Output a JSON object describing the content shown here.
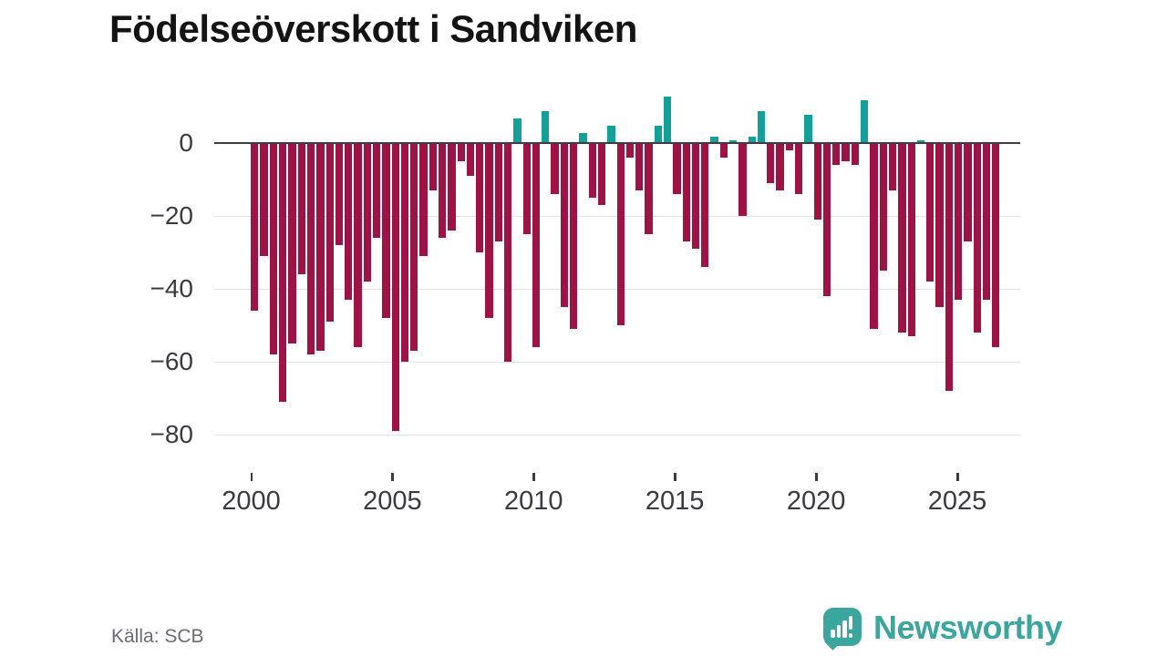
{
  "title": "Födelseöverskott i Sandviken",
  "source": {
    "label": "Källa: SCB"
  },
  "branding": {
    "name": "Newsworthy",
    "icon": "newsworthy-chart-bubble-icon"
  },
  "colors": {
    "negative_bar": "#a01144",
    "positive_bar": "#12a19a",
    "zero_line": "#3d3d42",
    "gridline": "#e3e3e6",
    "axis_text": "#3a3a40",
    "title_text": "#141414",
    "source_text": "#6b6b73",
    "brand_teal": "#3aa79f",
    "background": "#ffffff"
  },
  "chart_data": {
    "type": "bar",
    "title": "Födelseöverskott i Sandviken",
    "start_year": 2000,
    "periods_per_year": 3,
    "values": [
      -46,
      -31,
      -58,
      -71,
      -55,
      -36,
      -58,
      -57,
      -49,
      -28,
      -43,
      -56,
      -38,
      -26,
      -48,
      -79,
      -60,
      -57,
      -31,
      -13,
      -26,
      -24,
      -5,
      -9,
      -30,
      -48,
      -27,
      -60,
      7,
      -25,
      -56,
      9,
      -14,
      -45,
      -51,
      3,
      -15,
      -17,
      5,
      -50,
      -4,
      -13,
      -25,
      5,
      13,
      -14,
      -27,
      -29,
      -34,
      2,
      -4,
      1,
      -20,
      2,
      9,
      -11,
      -13,
      -2,
      -14,
      8,
      -21,
      -42,
      -6,
      -5,
      -6,
      12,
      -51,
      -35,
      -13,
      -52,
      -53,
      1,
      -38,
      -45,
      -68,
      -43,
      -27,
      -52,
      -43,
      -56
    ],
    "x_tick_labels": [
      "2000",
      "2005",
      "2010",
      "2015",
      "2020",
      "2025"
    ],
    "y_tick_labels": [
      "0",
      "−20",
      "−40",
      "−60",
      "−80"
    ],
    "y_tick_values": [
      0,
      -20,
      -40,
      -60,
      -80
    ],
    "ylim": [
      -85,
      15
    ],
    "grid": true,
    "legend": false
  }
}
